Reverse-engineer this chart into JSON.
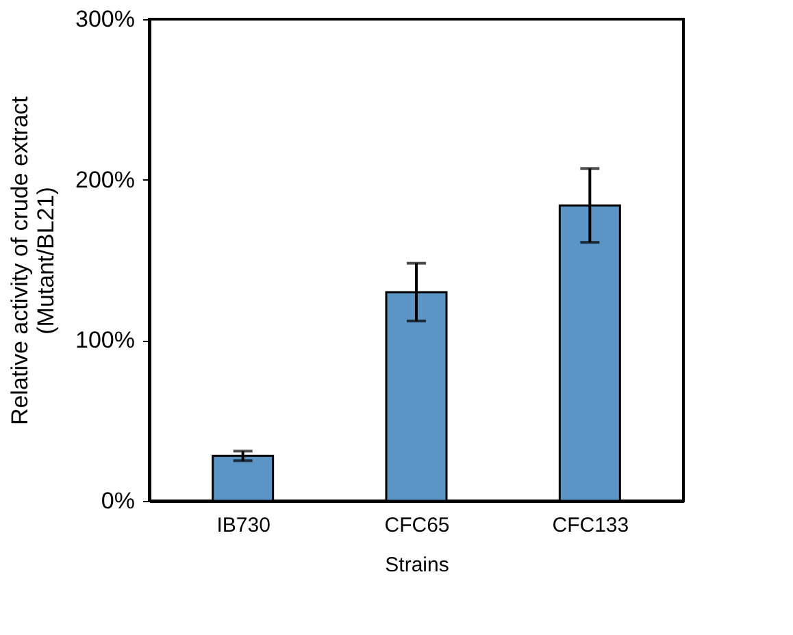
{
  "chart_data": {
    "type": "bar",
    "xlabel": "Strains",
    "ylabel": "Relative activity of crude extract\n(Mutant/BL21)",
    "categories": [
      "IB730",
      "CFC65",
      "CFC133"
    ],
    "values": [
      28,
      130,
      184
    ],
    "errors": [
      3,
      18,
      23
    ],
    "color": "#5b95c6",
    "ylim": [
      0,
      300
    ],
    "yticks": [
      {
        "value": 0,
        "label": "0%"
      },
      {
        "value": 100,
        "label": "100%"
      },
      {
        "value": 200,
        "label": "200%"
      },
      {
        "value": 300,
        "label": "300%"
      }
    ],
    "grid": false
  }
}
